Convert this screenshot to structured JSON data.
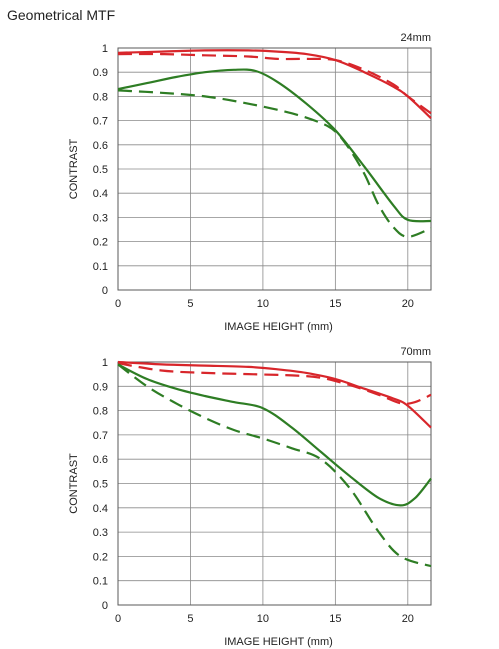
{
  "page": {
    "title": "Geometrical MTF"
  },
  "colors": {
    "red": "#d8262b",
    "green": "#2e7d24",
    "grid": "#8a8a8a",
    "frame": "#5a5a5a"
  },
  "chart_data": [
    {
      "type": "line",
      "focal_label": "24mm",
      "xlabel": "IMAGE HEIGHT (mm)",
      "ylabel": "CONTRAST",
      "xlim": [
        0,
        21.6
      ],
      "ylim": [
        0,
        1
      ],
      "xticks": [
        0,
        5,
        10,
        15,
        20
      ],
      "yticks": [
        0,
        0.1,
        0.2,
        0.3,
        0.4,
        0.5,
        0.6,
        0.7,
        0.8,
        0.9,
        1
      ],
      "ytick_labels": [
        "0",
        "0.1",
        "0.2",
        "0.3",
        "0.4",
        "0.5",
        "0.6",
        "0.7",
        "0.8",
        "0.9",
        "1"
      ],
      "xtick_labels": [
        "0",
        "5",
        "10",
        "15",
        "20"
      ],
      "grid": true,
      "series": [
        {
          "color": "red",
          "dash": false,
          "x": [
            0,
            3,
            6,
            9,
            11,
            13,
            15,
            17,
            19,
            20,
            21.6
          ],
          "y": [
            0.98,
            0.985,
            0.99,
            0.99,
            0.985,
            0.975,
            0.95,
            0.9,
            0.84,
            0.8,
            0.71
          ]
        },
        {
          "color": "red",
          "dash": true,
          "x": [
            0,
            3,
            6,
            9,
            11,
            13,
            15,
            17,
            19,
            20,
            21.6
          ],
          "y": [
            0.975,
            0.975,
            0.97,
            0.965,
            0.955,
            0.955,
            0.95,
            0.91,
            0.85,
            0.8,
            0.73
          ]
        },
        {
          "color": "green",
          "dash": false,
          "x": [
            0,
            2,
            4,
            6,
            8,
            9.5,
            11,
            13,
            15,
            17,
            19,
            20,
            21.6
          ],
          "y": [
            0.83,
            0.855,
            0.88,
            0.9,
            0.91,
            0.905,
            0.86,
            0.77,
            0.66,
            0.51,
            0.35,
            0.29,
            0.285
          ]
        },
        {
          "color": "green",
          "dash": true,
          "x": [
            0,
            3,
            6,
            9,
            12,
            14,
            15,
            16,
            17,
            18,
            19,
            20,
            21.6
          ],
          "y": [
            0.825,
            0.815,
            0.8,
            0.77,
            0.73,
            0.69,
            0.655,
            0.58,
            0.48,
            0.35,
            0.26,
            0.22,
            0.255
          ]
        }
      ]
    },
    {
      "type": "line",
      "focal_label": "70mm",
      "xlabel": "IMAGE HEIGHT (mm)",
      "ylabel": "CONTRAST",
      "xlim": [
        0,
        21.6
      ],
      "ylim": [
        0,
        1
      ],
      "xticks": [
        0,
        5,
        10,
        15,
        20
      ],
      "yticks": [
        0,
        0.1,
        0.2,
        0.3,
        0.4,
        0.5,
        0.6,
        0.7,
        0.8,
        0.9,
        1
      ],
      "ytick_labels": [
        "0",
        "0.1",
        "0.2",
        "0.3",
        "0.4",
        "0.5",
        "0.6",
        "0.7",
        "0.8",
        "0.9",
        "1"
      ],
      "xtick_labels": [
        "0",
        "5",
        "10",
        "15",
        "20"
      ],
      "grid": true,
      "series": [
        {
          "color": "red",
          "dash": false,
          "x": [
            0,
            3,
            6,
            9,
            11,
            13,
            15,
            17,
            19,
            20,
            21.6
          ],
          "y": [
            1.0,
            0.99,
            0.985,
            0.98,
            0.97,
            0.955,
            0.93,
            0.89,
            0.85,
            0.82,
            0.73
          ]
        },
        {
          "color": "red",
          "dash": true,
          "x": [
            0,
            3,
            6,
            9,
            12,
            14,
            16,
            18,
            19.5,
            20.5,
            21.6
          ],
          "y": [
            0.995,
            0.965,
            0.955,
            0.95,
            0.945,
            0.935,
            0.905,
            0.865,
            0.83,
            0.835,
            0.865
          ]
        },
        {
          "color": "green",
          "dash": false,
          "x": [
            0,
            2,
            4,
            6,
            8,
            10,
            12,
            14,
            16,
            18,
            19.5,
            20.5,
            21.6
          ],
          "y": [
            0.99,
            0.93,
            0.89,
            0.86,
            0.835,
            0.81,
            0.73,
            0.63,
            0.53,
            0.44,
            0.41,
            0.44,
            0.52
          ]
        },
        {
          "color": "green",
          "dash": true,
          "x": [
            0,
            2,
            4,
            6,
            8,
            10,
            12,
            14,
            16,
            18,
            19.5,
            21.6
          ],
          "y": [
            0.99,
            0.9,
            0.83,
            0.77,
            0.72,
            0.685,
            0.645,
            0.6,
            0.48,
            0.3,
            0.2,
            0.16
          ]
        }
      ]
    }
  ]
}
